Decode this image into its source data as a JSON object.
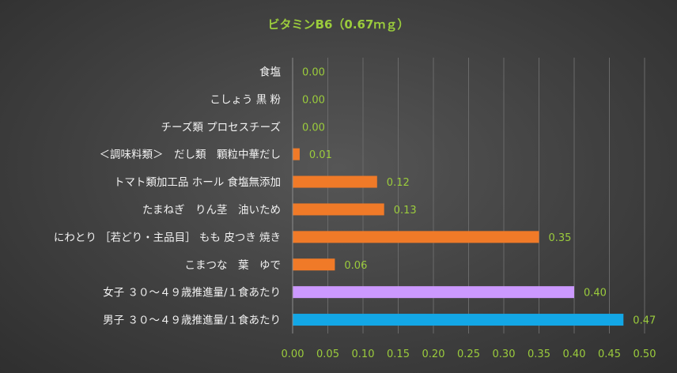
{
  "chart_data": {
    "type": "bar",
    "orientation": "horizontal",
    "title": "ビタミンB6（0.67ｍｇ）",
    "categories": [
      "食塩",
      "こしょう 黒 粉",
      "チーズ類 プロセスチーズ",
      "＜調味料類＞　だし類　顆粒中華だし",
      "トマト類加工品 ホール 食塩無添加",
      "たまねぎ　りん茎　油いため",
      "にわとり ［若どり・主品目］ もも 皮つき 焼き",
      "こまつな　葉　ゆで",
      "女子 ３０～４９歳推進量/１食あたり",
      "男子 ３０～４９歳推進量/１食あたり"
    ],
    "values": [
      0.0,
      0.0,
      0.0,
      0.01,
      0.12,
      0.13,
      0.35,
      0.06,
      0.4,
      0.47
    ],
    "value_labels": [
      "0.00",
      "0.00",
      "0.00",
      "0.01",
      "0.12",
      "0.13",
      "0.35",
      "0.06",
      "0.40",
      "0.47"
    ],
    "bar_colors": [
      "#f07a28",
      "#f07a28",
      "#f07a28",
      "#f07a28",
      "#f07a28",
      "#f07a28",
      "#f07a28",
      "#f07a28",
      "#cc99ff",
      "#13a7e6"
    ],
    "xlim": [
      0,
      0.5
    ],
    "x_ticks": [
      "0.00",
      "0.05",
      "0.10",
      "0.15",
      "0.20",
      "0.25",
      "0.30",
      "0.35",
      "0.40",
      "0.45",
      "0.50"
    ],
    "grid": "vertical",
    "legend": "none"
  }
}
